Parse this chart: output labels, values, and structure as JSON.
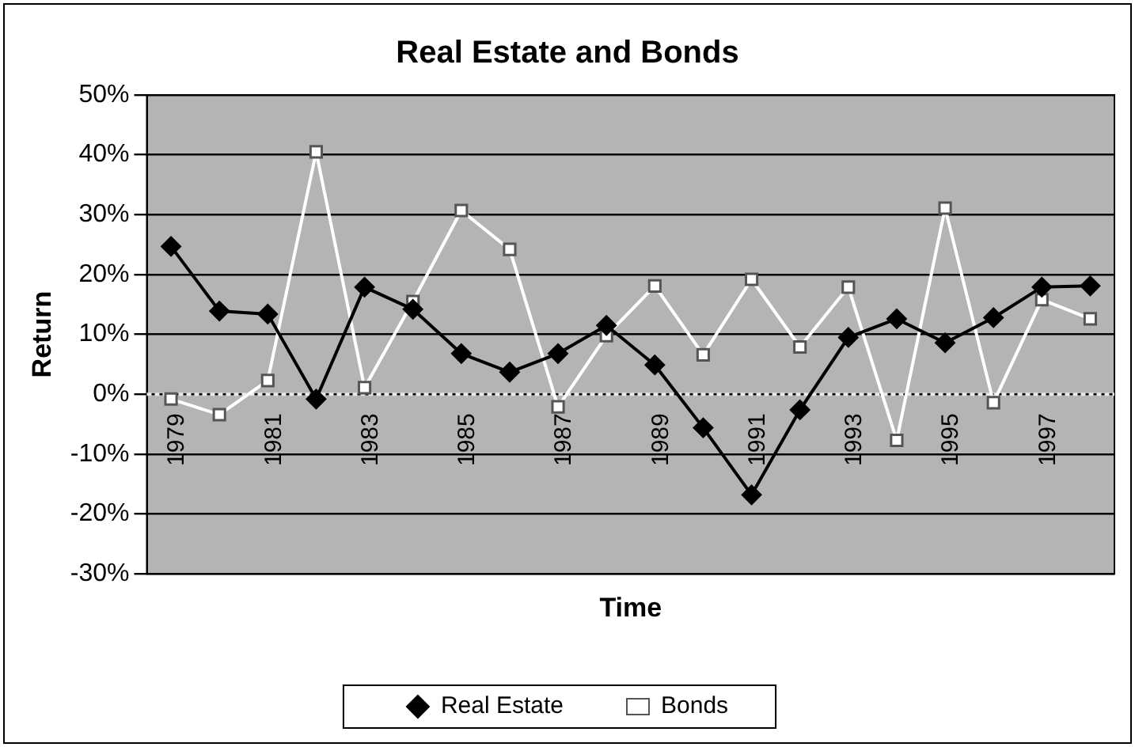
{
  "chart_data": {
    "type": "line",
    "title": "Real Estate and Bonds",
    "xlabel": "Time",
    "ylabel": "Return",
    "categories": [
      "1979",
      null,
      "1981",
      null,
      "1983",
      null,
      "1985",
      null,
      "1987",
      null,
      "1989",
      null,
      "1991",
      null,
      "1993",
      null,
      "1995",
      null,
      "1997",
      null
    ],
    "series": [
      {
        "name": "Real Estate",
        "color": "#000000",
        "marker": "diamond",
        "values": [
          24.7,
          13.9,
          13.4,
          -0.8,
          17.9,
          14.2,
          6.8,
          3.7,
          6.8,
          11.5,
          4.9,
          -5.6,
          -16.8,
          -2.6,
          9.5,
          12.6,
          8.6,
          12.8,
          17.9,
          18.1
        ]
      },
      {
        "name": "Bonds",
        "color": "#ffffff",
        "marker": "square",
        "values": [
          -0.8,
          -3.4,
          2.3,
          40.5,
          1.1,
          15.5,
          30.7,
          24.2,
          -2.1,
          9.8,
          18.1,
          6.6,
          19.2,
          7.9,
          17.9,
          -7.7,
          31.1,
          -1.4,
          15.8,
          12.6
        ]
      }
    ],
    "ylim": [
      -30,
      50
    ],
    "yticks": [
      {
        "value": -30,
        "label": "-30%"
      },
      {
        "value": -20,
        "label": "-20%"
      },
      {
        "value": -10,
        "label": "-10%"
      },
      {
        "value": 0,
        "label": "0%"
      },
      {
        "value": 10,
        "label": "10%"
      },
      {
        "value": 20,
        "label": "20%"
      },
      {
        "value": 30,
        "label": "30%"
      },
      {
        "value": 40,
        "label": "40%"
      },
      {
        "value": 50,
        "label": "50%"
      }
    ],
    "ref_lines": [
      {
        "axis": "y",
        "value": 0,
        "color": "#e8e8e8",
        "line_style": "dashed"
      }
    ],
    "grid": "y",
    "legend": "bottom"
  }
}
